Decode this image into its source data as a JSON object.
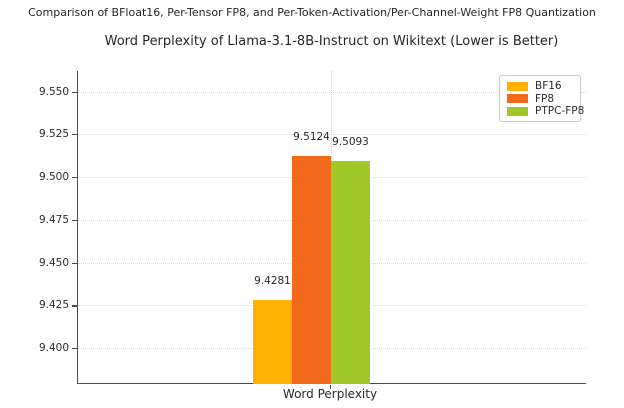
{
  "header": {
    "suptitle": "Comparison of BFloat16, Per-Tensor FP8, and Per-Token-Activation/Per-Channel-Weight FP8 Quantization"
  },
  "chart_data": {
    "type": "bar",
    "title": "Word Perplexity of Llama-3.1-8B-Instruct on Wikitext (Lower is Better)",
    "categories": [
      "Word Perplexity"
    ],
    "series": [
      {
        "name": "BF16",
        "values": [
          9.4281
        ],
        "color": "#FFB000"
      },
      {
        "name": "FP8",
        "values": [
          9.5124
        ],
        "color": "#F2691C"
      },
      {
        "name": "PTPC-FP8",
        "values": [
          9.5093
        ],
        "color": "#A0C826"
      }
    ],
    "bar_labels": [
      "9.4281",
      "9.5124",
      "9.5093"
    ],
    "xlabel": "",
    "ylabel": "",
    "ylim": [
      9.379,
      9.562
    ],
    "yticks": [
      9.4,
      9.425,
      9.45,
      9.475,
      9.5,
      9.525,
      9.55
    ],
    "ytick_format_decimals": 3,
    "grid": true,
    "legend_position": "upper right",
    "axis_color": "#4a4a4a",
    "grid_color": "#d8d8d8"
  }
}
